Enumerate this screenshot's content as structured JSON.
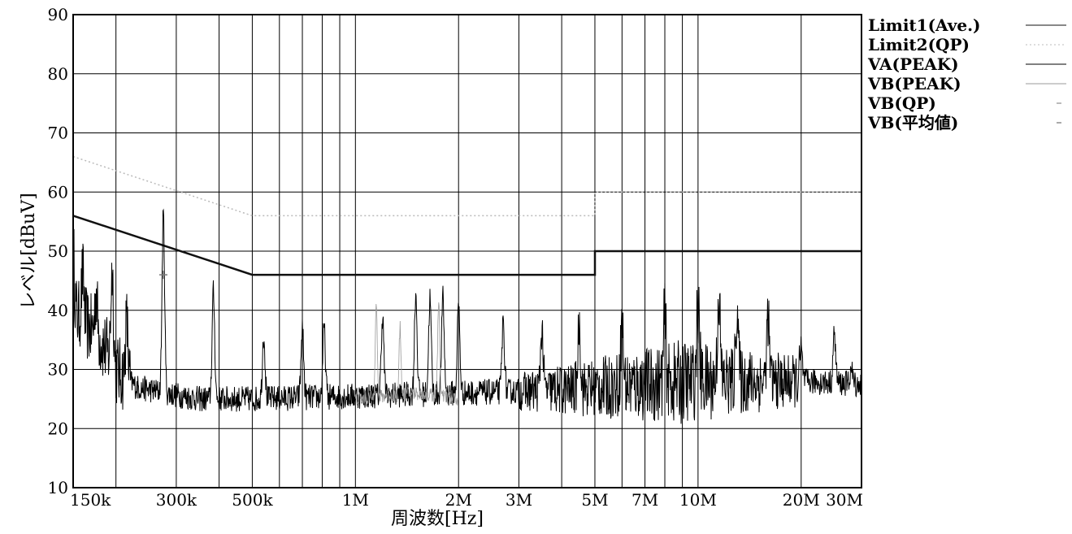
{
  "chart_data": {
    "type": "line",
    "x_scale": "log",
    "x_unit": "Hz",
    "xlim": [
      150000,
      30000000
    ],
    "ylim": [
      10,
      90
    ],
    "grid": true,
    "legend_position": "right",
    "xlabel": "周波数[Hz]",
    "ylabel": "レベル[dBuV]",
    "yticks": [
      10,
      20,
      30,
      40,
      50,
      60,
      70,
      80,
      90
    ],
    "xticks": [
      {
        "value": 150000,
        "label": "150k"
      },
      {
        "value": 300000,
        "label": "300k"
      },
      {
        "value": 500000,
        "label": "500k"
      },
      {
        "value": 1000000,
        "label": "1M"
      },
      {
        "value": 2000000,
        "label": "2M"
      },
      {
        "value": 3000000,
        "label": "3M"
      },
      {
        "value": 5000000,
        "label": "5M"
      },
      {
        "value": 7000000,
        "label": "7M"
      },
      {
        "value": 10000000,
        "label": "10M"
      },
      {
        "value": 20000000,
        "label": "20M"
      },
      {
        "value": 30000000,
        "label": "30M"
      }
    ],
    "minor_grid_x": [
      200000,
      400000,
      600000,
      700000,
      800000,
      900000,
      4000000,
      6000000,
      8000000,
      9000000
    ],
    "series": [
      {
        "name": "Limit1(Ave.)",
        "color": "#111111",
        "style": "solid",
        "points": [
          [
            150000,
            56
          ],
          [
            500000,
            46
          ],
          [
            5000000,
            46
          ],
          [
            5000000,
            50
          ],
          [
            30000000,
            50
          ]
        ]
      },
      {
        "name": "Limit2(QP)",
        "color": "#bbbbbb",
        "style": "dotted",
        "points": [
          [
            150000,
            66
          ],
          [
            500000,
            56
          ],
          [
            5000000,
            56
          ],
          [
            5000000,
            60
          ],
          [
            30000000,
            60
          ]
        ]
      },
      {
        "name": "VA(PEAK)",
        "color": "#000000",
        "style": "solid",
        "baseline": [
          [
            150000,
            40
          ],
          [
            180000,
            35
          ],
          [
            200000,
            30
          ],
          [
            230000,
            27
          ],
          [
            280000,
            26
          ],
          [
            350000,
            25
          ],
          [
            500000,
            25
          ],
          [
            1000000,
            25.5
          ],
          [
            2000000,
            26
          ],
          [
            4000000,
            26.5
          ],
          [
            7000000,
            27.5
          ],
          [
            10000000,
            28
          ],
          [
            15000000,
            28
          ],
          [
            20000000,
            28
          ],
          [
            30000000,
            27.5
          ]
        ],
        "peaks": [
          [
            150000,
            50
          ],
          [
            160000,
            46
          ],
          [
            175000,
            43
          ],
          [
            195000,
            47
          ],
          [
            215000,
            38
          ],
          [
            275000,
            56
          ],
          [
            385000,
            43
          ],
          [
            540000,
            36
          ],
          [
            700000,
            37
          ],
          [
            810000,
            37
          ],
          [
            1200000,
            39
          ],
          [
            1500000,
            43
          ],
          [
            1650000,
            42
          ],
          [
            1800000,
            42
          ],
          [
            2000000,
            41
          ],
          [
            2700000,
            38
          ],
          [
            3500000,
            37
          ],
          [
            4500000,
            38
          ],
          [
            6000000,
            38
          ],
          [
            8000000,
            39
          ],
          [
            10000000,
            41
          ],
          [
            11500000,
            43
          ],
          [
            13000000,
            41
          ],
          [
            16000000,
            39
          ],
          [
            20000000,
            33
          ],
          [
            25000000,
            36
          ],
          [
            28000000,
            30
          ]
        ]
      },
      {
        "name": "VB(PEAK)",
        "color": "#999999",
        "style": "solid",
        "baseline": [
          [
            1000000,
            25
          ],
          [
            1500000,
            26
          ],
          [
            2000000,
            25
          ]
        ],
        "peaks": [
          [
            1150000,
            42
          ],
          [
            1350000,
            37
          ],
          [
            1750000,
            42
          ]
        ]
      },
      {
        "name": "VB(QP)",
        "color": "#777777",
        "style": "marker",
        "points": [
          [
            275000,
            46
          ]
        ]
      },
      {
        "name": "VB(平均値)",
        "color": "#555555",
        "style": "marker",
        "points": []
      }
    ]
  }
}
